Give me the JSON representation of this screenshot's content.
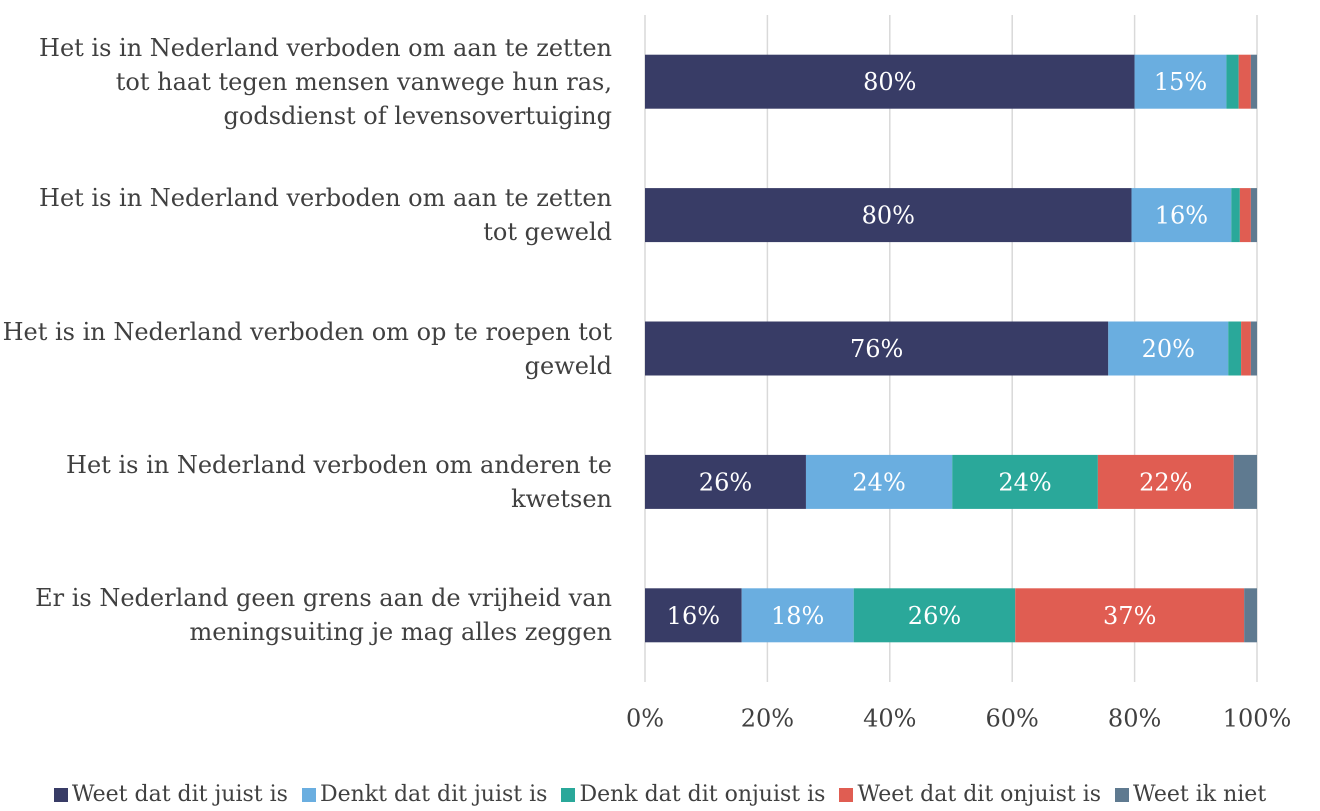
{
  "chart_data": {
    "type": "stacked-bar-horizontal",
    "categories": [
      "Het is in Nederland verboden om aan te zetten tot haat tegen mensen vanwege hun ras, godsdienst of levensovertuiging",
      "Het is in Nederland verboden om aan te zetten tot geweld",
      "Het is in Nederland verboden om op te roepen tot geweld",
      "Het is in Nederland verboden om anderen te kwetsen",
      "Er is Nederland geen grens aan de vrijheid van meningsuiting je mag alles zeggen"
    ],
    "series": [
      {
        "name": "Weet dat dit juist is",
        "color": "#383c66",
        "values": [
          80,
          79.5,
          75.7,
          26.3,
          15.8
        ],
        "value_labels": [
          "80%",
          "80%",
          "76%",
          "26%",
          "16%"
        ]
      },
      {
        "name": "Denkt dat dit juist is",
        "color": "#6aaee0",
        "values": [
          15,
          16.3,
          19.6,
          23.9,
          18.3
        ],
        "value_labels": [
          "15%",
          "16%",
          "20%",
          "24%",
          "18%"
        ]
      },
      {
        "name": "Denk dat dit onjuist is",
        "color": "#2aa89a",
        "values": [
          2,
          1.4,
          2.1,
          23.8,
          26.4
        ],
        "value_labels": [
          null,
          null,
          null,
          "24%",
          "26%"
        ]
      },
      {
        "name": "Weet dat dit onjuist is",
        "color": "#e05d52",
        "values": [
          2,
          1.8,
          1.6,
          22.2,
          37.4
        ],
        "value_labels": [
          null,
          null,
          null,
          "22%",
          "37%"
        ]
      },
      {
        "name": "Weet ik niet",
        "color": "#5f7a90",
        "values": [
          1,
          1,
          1,
          3.8,
          2.1
        ],
        "value_labels": [
          null,
          null,
          null,
          null,
          null
        ]
      }
    ],
    "xlim": [
      0,
      100
    ],
    "xticks": [
      {
        "value": 0,
        "label": "0%"
      },
      {
        "value": 20,
        "label": "20%"
      },
      {
        "value": 40,
        "label": "40%"
      },
      {
        "value": 60,
        "label": "60%"
      },
      {
        "value": 80,
        "label": "80%"
      },
      {
        "value": 100,
        "label": "100%"
      }
    ],
    "grid": true,
    "legend": "bottom"
  }
}
